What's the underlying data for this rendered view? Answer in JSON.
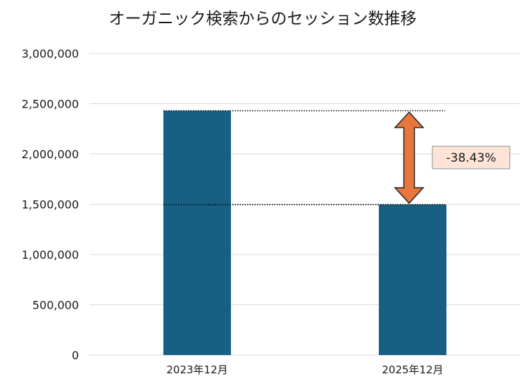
{
  "chart_data": {
    "type": "bar",
    "title": "オーガニック検索からのセッション数推移",
    "categories": [
      "2023年12月",
      "2025年12月"
    ],
    "values": [
      2430000,
      1496000
    ],
    "ylim": [
      0,
      3000000
    ],
    "yticks": [
      0,
      500000,
      1000000,
      1500000,
      2000000,
      2500000,
      3000000
    ],
    "ytick_labels": [
      "0",
      "500,000",
      "1,000,000",
      "1,500,000",
      "2,000,000",
      "2,500,000",
      "3,000,000"
    ],
    "grid": true,
    "annotation": {
      "text": "-38.43%",
      "from_category": 0,
      "to_category": 1
    }
  },
  "colors": {
    "bar": "#176083",
    "grid": "#d9d9d9",
    "arrow_fill": "#e9773b",
    "arrow_stroke": "#2b2b2b",
    "label_bg": "#fde4d6",
    "label_border": "#8c8c8c",
    "text": "#1a1a1a"
  }
}
